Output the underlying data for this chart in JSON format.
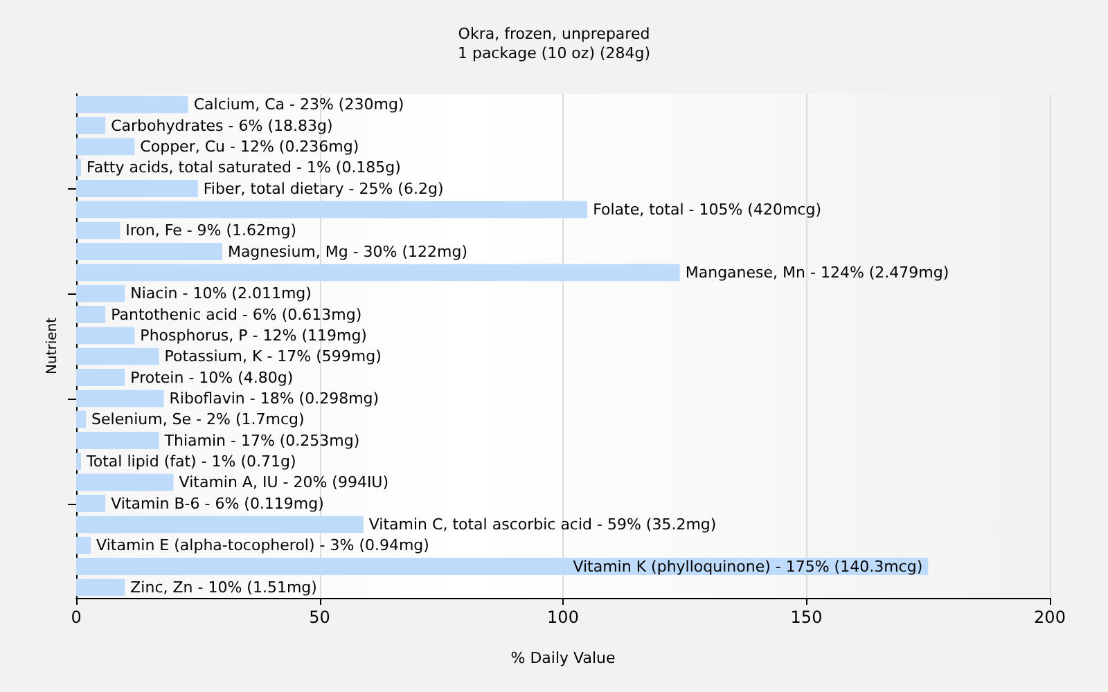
{
  "chart_data": {
    "type": "bar",
    "orientation": "horizontal",
    "title": "Okra, frozen, unprepared",
    "subtitle": "1 package (10 oz) (284g)",
    "xlabel": "% Daily Value",
    "ylabel": "Nutrient",
    "categories": [
      "Calcium, Ca - 23% (230mg)",
      "Carbohydrates - 6% (18.83g)",
      "Copper, Cu - 12% (0.236mg)",
      "Fatty acids, total saturated - 1% (0.185g)",
      "Fiber, total dietary - 25% (6.2g)",
      "Folate, total - 105% (420mcg)",
      "Iron, Fe - 9% (1.62mg)",
      "Magnesium, Mg - 30% (122mg)",
      "Manganese, Mn - 124% (2.479mg)",
      "Niacin - 10% (2.011mg)",
      "Pantothenic acid - 6% (0.613mg)",
      "Phosphorus, P - 12% (119mg)",
      "Potassium, K - 17% (599mg)",
      "Protein - 10% (4.80g)",
      "Riboflavin - 18% (0.298mg)",
      "Selenium, Se - 2% (1.7mcg)",
      "Thiamin - 17% (0.253mg)",
      "Total lipid (fat) - 1% (0.71g)",
      "Vitamin A, IU - 20% (994IU)",
      "Vitamin B-6 - 6% (0.119mg)",
      "Vitamin C, total ascorbic acid - 59% (35.2mg)",
      "Vitamin E (alpha-tocopherol) - 3% (0.94mg)",
      "Vitamin K (phylloquinone) - 175% (140.3mcg)",
      "Zinc, Zn - 10% (1.51mg)"
    ],
    "values": [
      23,
      6,
      12,
      1,
      25,
      105,
      9,
      30,
      124,
      10,
      6,
      12,
      17,
      10,
      18,
      2,
      17,
      1,
      20,
      6,
      59,
      3,
      175,
      10
    ],
    "color": "#bfdbfc",
    "xlim": [
      0,
      200
    ],
    "xticks": [
      0,
      50,
      100,
      150,
      200
    ],
    "grid": "x"
  }
}
